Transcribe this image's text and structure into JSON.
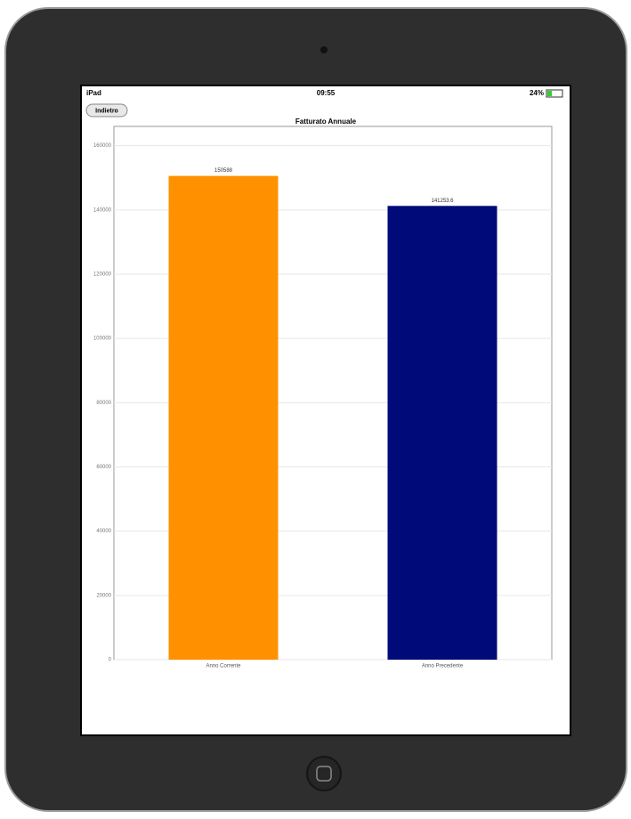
{
  "status_bar": {
    "carrier": "iPad",
    "time": "09:55",
    "battery": "24%"
  },
  "toolbar": {
    "back_button": "Indietro"
  },
  "chart_data": {
    "type": "bar",
    "title": "Fatturato Annuale",
    "categories": [
      "Anno Corrente",
      "Anno Precedente"
    ],
    "values": [
      150588,
      141253.6
    ],
    "colors": [
      "#ff9100",
      "#000a78"
    ],
    "ylim": [
      0,
      166000
    ],
    "yticks": [
      0,
      20000,
      40000,
      60000,
      80000,
      100000,
      120000,
      140000,
      160000
    ],
    "grid": true
  }
}
